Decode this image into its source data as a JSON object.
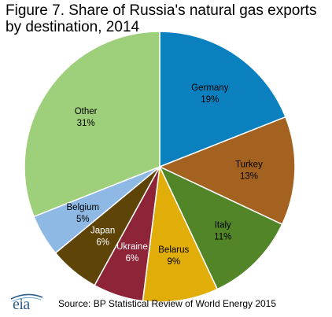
{
  "title": "Figure 7. Share of Russia's natural gas exports by destination, 2014",
  "chart_data": {
    "type": "pie",
    "title": "Figure 7. Share of Russia's natural gas exports by destination, 2014",
    "slices": [
      {
        "label": "Germany",
        "value": 19,
        "display": "19%",
        "color": "#0a80bf",
        "text_color": "#000000"
      },
      {
        "label": "Turkey",
        "value": 13,
        "display": "13%",
        "color": "#a3621f",
        "text_color": "#000000"
      },
      {
        "label": "Italy",
        "value": 11,
        "display": "11%",
        "color": "#528528",
        "text_color": "#000000"
      },
      {
        "label": "Belarus",
        "value": 9,
        "display": "9%",
        "color": "#e1ad09",
        "text_color": "#000000"
      },
      {
        "label": "Ukraine",
        "value": 6,
        "display": "6%",
        "color": "#8d2438",
        "text_color": "#ffffff"
      },
      {
        "label": "Japan",
        "value": 6,
        "display": "6%",
        "color": "#5f4408",
        "text_color": "#ffffff"
      },
      {
        "label": "Belgium",
        "value": 5,
        "display": "5%",
        "color": "#8db9e4",
        "text_color": "#000000"
      },
      {
        "label": "Other",
        "value": 31,
        "display": "31%",
        "color": "#9ecf7a",
        "text_color": "#000000"
      }
    ],
    "start": "12 o'clock",
    "direction": "clockwise",
    "legend": "none"
  },
  "footer": {
    "logo_text": "eia",
    "source": "Source:  BP Statistical Review  of World Energy 2015"
  }
}
